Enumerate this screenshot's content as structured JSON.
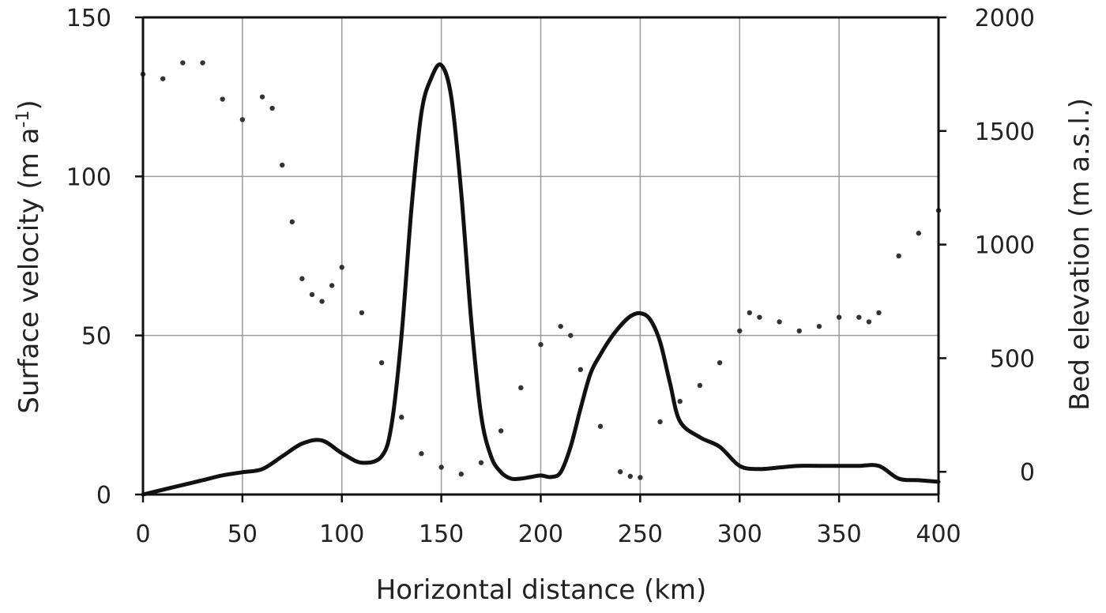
{
  "chart_data": {
    "type": "line",
    "xlabel": "Horizontal distance (km)",
    "ylabel_left": "Surface velocity (m a",
    "ylabel_left_sup": "-1",
    "ylabel_left_end": ")",
    "ylabel_right": "Bed elevation (m a.s.l.)",
    "xlim": [
      0,
      400
    ],
    "ylim_left": [
      0,
      150
    ],
    "ylim_right": [
      -100,
      2000
    ],
    "grid": true,
    "x_ticks": [
      "0",
      "50",
      "100",
      "150",
      "200",
      "250",
      "300",
      "350",
      "400"
    ],
    "y_left_ticks": [
      "0",
      "50",
      "100",
      "150"
    ],
    "y_right_ticks": [
      "0",
      "500",
      "1000",
      "1500",
      "2000"
    ],
    "series": [
      {
        "style": "solid",
        "axis": "left",
        "x": [
          0,
          10,
          20,
          30,
          40,
          50,
          60,
          70,
          80,
          90,
          100,
          110,
          120,
          125,
          130,
          135,
          140,
          145,
          150,
          155,
          160,
          165,
          170,
          175,
          180,
          185,
          190,
          195,
          200,
          205,
          210,
          215,
          220,
          225,
          230,
          235,
          240,
          245,
          250,
          255,
          260,
          265,
          270,
          280,
          290,
          300,
          310,
          320,
          330,
          340,
          350,
          360,
          370,
          380,
          390,
          400
        ],
        "y": [
          0,
          1.5,
          3,
          4.5,
          6,
          7,
          8,
          12,
          16,
          17,
          13,
          10,
          12,
          22,
          50,
          90,
          120,
          131,
          135,
          125,
          95,
          55,
          25,
          12,
          7,
          5,
          5,
          5.5,
          6,
          5.5,
          7,
          15,
          27,
          38,
          44,
          49,
          53,
          56,
          57,
          55,
          48,
          35,
          23,
          18,
          15,
          9,
          8,
          8.5,
          9,
          9,
          9,
          9,
          9,
          5,
          4.5,
          4
        ]
      },
      {
        "style": "dotted",
        "axis": "right",
        "x": [
          0,
          10,
          20,
          30,
          40,
          50,
          60,
          65,
          70,
          75,
          80,
          85,
          90,
          95,
          100,
          110,
          120,
          130,
          140,
          150,
          160,
          170,
          180,
          190,
          200,
          210,
          215,
          220,
          230,
          240,
          245,
          250,
          260,
          270,
          280,
          290,
          300,
          305,
          310,
          320,
          330,
          340,
          350,
          360,
          365,
          370,
          380,
          390,
          400
        ],
        "y": [
          1750,
          1730,
          1800,
          1800,
          1640,
          1550,
          1650,
          1600,
          1350,
          1100,
          850,
          780,
          750,
          820,
          900,
          700,
          480,
          240,
          80,
          20,
          -10,
          40,
          180,
          370,
          560,
          640,
          600,
          450,
          200,
          0,
          -20,
          -25,
          220,
          310,
          380,
          480,
          620,
          700,
          680,
          660,
          620,
          640,
          680,
          680,
          660,
          700,
          950,
          1050,
          1150
        ]
      }
    ]
  }
}
